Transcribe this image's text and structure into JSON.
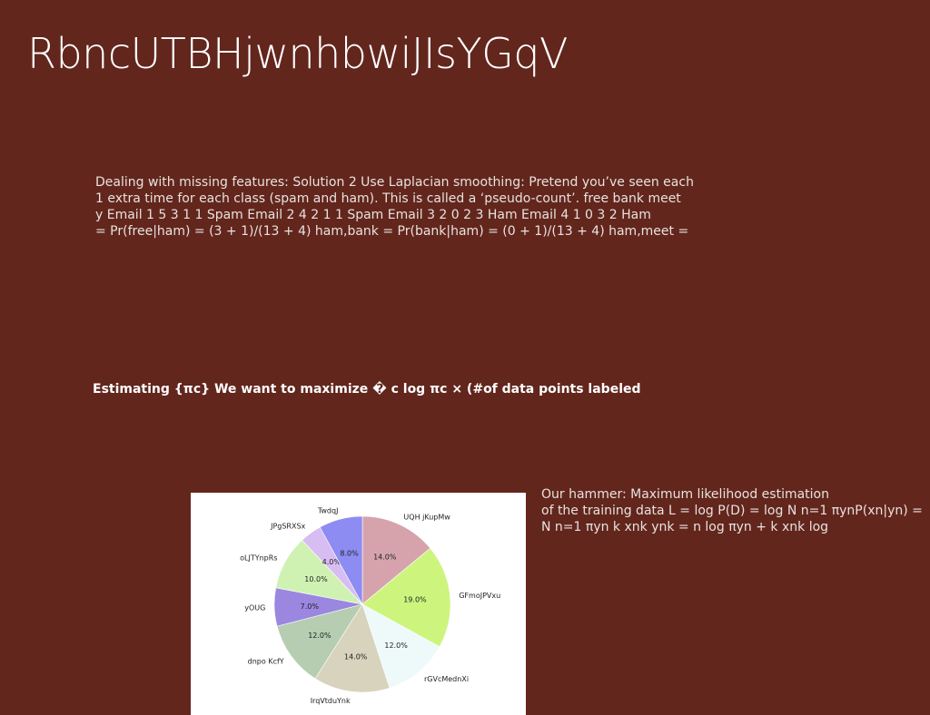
{
  "slide": {
    "title": "RbncUTBHjwnhbwiJIsYGqV",
    "paragraph_lines": [
      "Dealing with missing features: Solution 2 Use Laplacian smoothing: Pretend you’ve seen each",
      "1 extra time for each class (spam and ham). This is called a ‘pseudo-count’. free bank meet",
      "y Email 1 5 3 1 1 Spam Email 2 4 2 1 1 Spam Email 3 2 0 2 3 Ham Email 4 1 0 3 2 Ham",
      "= Pr(free|ham) = (3 + 1)/(13 + 4) ham,bank = Pr(bank|ham) = (0 + 1)/(13 + 4) ham,meet ="
    ],
    "heading": "Estimating {πc} We want to maximize � c log πc × (#of data points labeled",
    "side_lines": [
      "Our hammer: Maximum likelihood estimation",
      "of the training data L = log P(D) = log N  n=1 πynP(xn|yn) =",
      "N  n=1  πyn  k xnk ynk  =  n  log πyn +  k xnk log"
    ]
  },
  "chart_data": {
    "type": "pie",
    "title": "",
    "start_angle_deg": 90,
    "direction": "clockwise",
    "slices": [
      {
        "label": "UQH jKupMw",
        "value": 14.0,
        "pct_label": "14.0%",
        "color": "#d6a3ad"
      },
      {
        "label": "GFmoJPVxu",
        "value": 19.0,
        "pct_label": "19.0%",
        "color": "#cdf57e"
      },
      {
        "label": "rGVcMednXi",
        "value": 12.0,
        "pct_label": "12.0%",
        "color": "#eef9fa"
      },
      {
        "label": "IrqVtduYnk",
        "value": 14.0,
        "pct_label": "14.0%",
        "color": "#d7d3bd"
      },
      {
        "label": "dnpo KcfY",
        "value": 12.0,
        "pct_label": "12.0%",
        "color": "#b6cdb2"
      },
      {
        "label": "yOUG",
        "value": 7.0,
        "pct_label": "7.0%",
        "color": "#9b87e0"
      },
      {
        "label": "oLJTYnpRs",
        "value": 10.0,
        "pct_label": "10.0%",
        "color": "#cff2b3"
      },
      {
        "label": "JPgSRXSx",
        "value": 4.0,
        "pct_label": "4.0%",
        "color": "#d8bdf2"
      },
      {
        "label": "TwdqJ",
        "value": 8.0,
        "pct_label": "8.0%",
        "color": "#8c8cf2"
      }
    ]
  }
}
